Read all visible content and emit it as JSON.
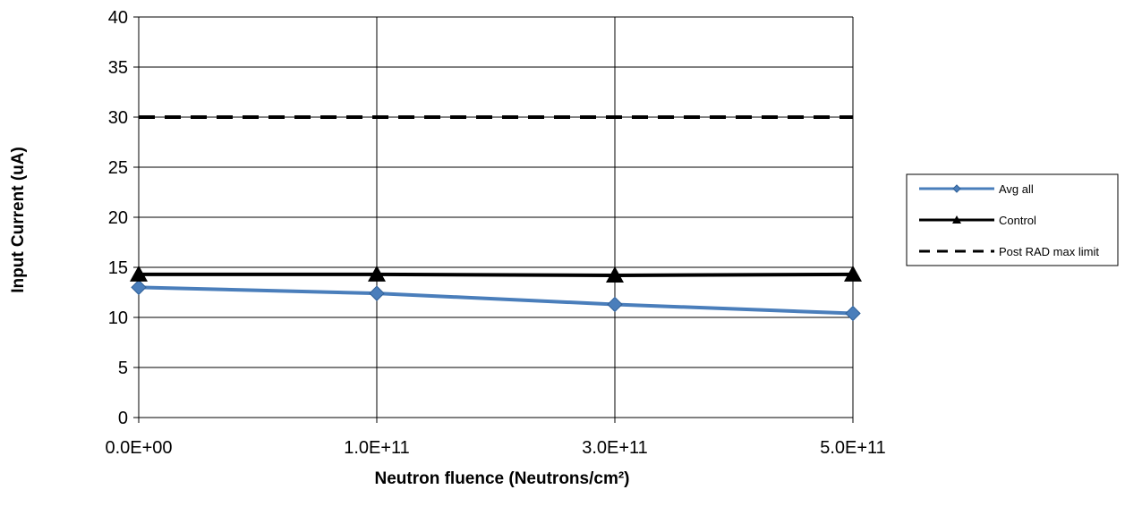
{
  "chart_data": {
    "type": "line",
    "title": "",
    "xlabel": "Neutron fluence (Neutrons/cm²)",
    "ylabel": "Input Current (uA)",
    "categories": [
      "0.0E+00",
      "1.0E+11",
      "3.0E+11",
      "5.0E+11"
    ],
    "ylim": [
      0,
      40
    ],
    "yticks": [
      0,
      5,
      10,
      15,
      20,
      25,
      30,
      35,
      40
    ],
    "grid": true,
    "legend_position": "right",
    "series": [
      {
        "name": "Avg all",
        "values": [
          13.0,
          12.4,
          11.3,
          10.4
        ],
        "color": "#4a7ebb",
        "marker": "diamond",
        "line_style": "solid"
      },
      {
        "name": "Control",
        "values": [
          14.3,
          14.3,
          14.2,
          14.3
        ],
        "color": "#000000",
        "marker": "triangle",
        "line_style": "solid"
      },
      {
        "name": "Post RAD max limit",
        "values": [
          30,
          30,
          30,
          30
        ],
        "color": "#000000",
        "marker": "none",
        "line_style": "dashed"
      }
    ]
  }
}
